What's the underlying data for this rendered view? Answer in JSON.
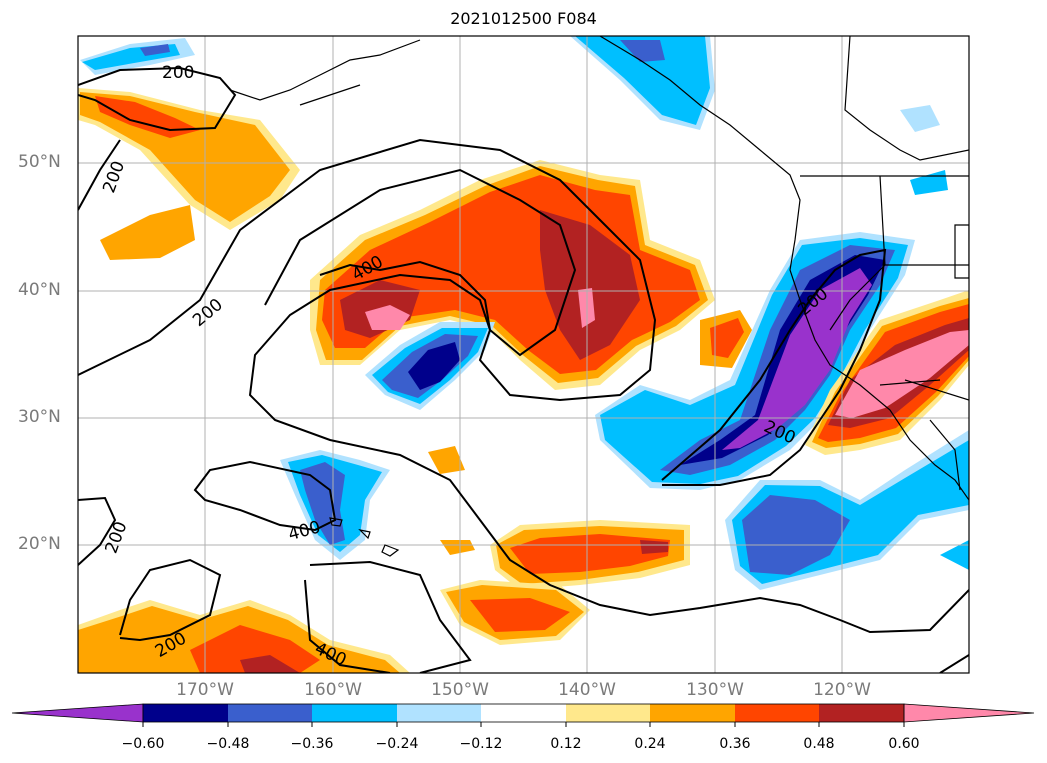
{
  "title": "2021012500 F084",
  "lat_labels": [
    "50°N",
    "40°N",
    "30°N",
    "20°N"
  ],
  "lon_labels": [
    "170°W",
    "160°W",
    "150°W",
    "140°W",
    "130°W",
    "120°W"
  ],
  "contour_labels": [
    "200",
    "200",
    "400",
    "200",
    "200",
    "400",
    "200",
    "200",
    "400",
    "200"
  ],
  "colorbar": {
    "tick_labels": [
      "−0.60",
      "−0.48",
      "−0.36",
      "−0.24",
      "−0.12",
      "0.12",
      "0.24",
      "0.36",
      "0.48",
      "0.60"
    ],
    "colors": [
      "#9932cc",
      "#00008b",
      "#3a5fcd",
      "#00bfff",
      "#b0e2ff",
      "#ffffff",
      "#ffe88c",
      "#ffa500",
      "#ff4500",
      "#b22222",
      "#ff88aa"
    ]
  }
}
